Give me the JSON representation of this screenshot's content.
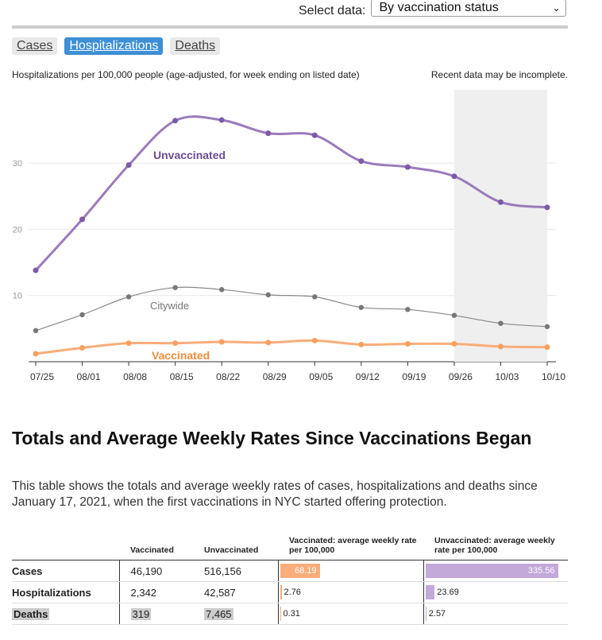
{
  "header": {
    "select_label": "Select data:",
    "select_value": "By vaccination status"
  },
  "tabs": [
    {
      "label": "Cases",
      "active": false
    },
    {
      "label": "Hospitalizations",
      "active": true
    },
    {
      "label": "Deaths",
      "active": false
    }
  ],
  "chart": {
    "subtitle": "Hospitalizations per 100,000 people (age-adjusted, for week ending on listed date)",
    "note": "Recent data may be incomplete."
  },
  "chart_data": {
    "type": "line",
    "categories": [
      "07/25",
      "08/01",
      "08/08",
      "08/15",
      "08/22",
      "08/29",
      "09/05",
      "09/12",
      "09/19",
      "09/26",
      "10/03",
      "10/10"
    ],
    "ylim": [
      0,
      40
    ],
    "yticks": [
      10,
      20,
      30
    ],
    "grid": true,
    "incomplete_from": "09/26",
    "series": [
      {
        "name": "Unvaccinated",
        "color": "#9a7bbc",
        "values": [
          13.8,
          21.5,
          29.7,
          36.4,
          36.5,
          34.5,
          34.2,
          30.3,
          29.4,
          28.0,
          24.1,
          23.3
        ]
      },
      {
        "name": "Citywide",
        "color": "#888888",
        "values": [
          4.7,
          7.1,
          9.8,
          11.2,
          10.9,
          10.1,
          9.8,
          8.2,
          7.9,
          7.0,
          5.8,
          5.3
        ]
      },
      {
        "name": "Vaccinated",
        "color": "#f9ad7a",
        "values": [
          1.2,
          2.1,
          2.8,
          2.8,
          3.0,
          2.9,
          3.2,
          2.6,
          2.7,
          2.7,
          2.3,
          2.2
        ]
      }
    ]
  },
  "totals": {
    "title": "Totals and Average Weekly Rates Since Vaccinations Began",
    "description": "This table shows the totals and average weekly rates of cases, hospitalizations and deaths since January 17, 2021, when the first vaccinations in NYC started offering protection.",
    "columns": [
      "Vaccinated",
      "Unvaccinated",
      "Vaccinated: average weekly rate per 100,000",
      "Unvaccinated: average weekly rate per 100,000"
    ],
    "rows": [
      {
        "label": "Cases",
        "vaccinated": "46,190",
        "unvaccinated": "516,156",
        "vax_rate": 68.19,
        "vax_rate_text": "68.19",
        "unvax_rate": 335.56,
        "unvax_rate_text": "335.56"
      },
      {
        "label": "Hospitalizations",
        "vaccinated": "2,342",
        "unvaccinated": "42,587",
        "vax_rate": 2.76,
        "vax_rate_text": "2.76",
        "unvax_rate": 23.69,
        "unvax_rate_text": "23.69"
      },
      {
        "label": "Deaths",
        "vaccinated": "319",
        "unvaccinated": "7,465",
        "vax_rate": 0.31,
        "vax_rate_text": "0.31",
        "unvax_rate": 2.57,
        "unvax_rate_text": "2.57"
      }
    ],
    "colors": {
      "vaccinated": "#f9ad7a",
      "unvaccinated": "#c3a8da"
    }
  }
}
